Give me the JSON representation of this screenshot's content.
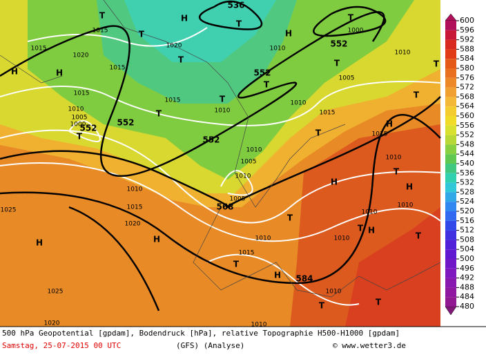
{
  "map_labels": [
    "552",
    "552",
    "552",
    "552",
    "552",
    "536",
    "568",
    "584",
    "1015",
    "1015",
    "1020",
    "1020",
    "1015",
    "1015",
    "1015",
    "1010",
    "1010",
    "1005",
    "1000",
    "1000",
    "1010",
    "1010",
    "1005",
    "1015",
    "1015",
    "1010",
    "1005",
    "1010",
    "1010",
    "1015",
    "1020",
    "1025",
    "1005",
    "1010",
    "1010",
    "1010",
    "1010",
    "1010",
    "1015",
    "1010",
    "1025",
    "1010",
    "1020",
    "1010",
    "H",
    "H",
    "H",
    "H",
    "H",
    "H",
    "H",
    "H",
    "H",
    "H",
    "H",
    "T",
    "T",
    "T",
    "T",
    "T",
    "T",
    "T",
    "T",
    "T",
    "T",
    "T",
    "T",
    "T",
    "T",
    "T",
    "T",
    "T",
    "T",
    "T",
    "T"
  ],
  "colorbar": {
    "ticks": [
      600,
      596,
      592,
      588,
      584,
      580,
      576,
      572,
      568,
      564,
      560,
      556,
      552,
      548,
      544,
      540,
      536,
      532,
      528,
      524,
      520,
      516,
      512,
      508,
      504,
      500,
      496,
      492,
      488,
      484,
      480
    ],
    "colors": [
      "#b0105a",
      "#c81838",
      "#d82a20",
      "#e03c18",
      "#e45a18",
      "#e87020",
      "#ec8828",
      "#f0a030",
      "#f4b838",
      "#f4cc30",
      "#f0dc28",
      "#d8e030",
      "#b8d838",
      "#88d040",
      "#60c850",
      "#40c880",
      "#30d0b0",
      "#30c8d8",
      "#30a8e8",
      "#3088f0",
      "#3068f0",
      "#3048e8",
      "#4030e0",
      "#5020d8",
      "#6018d0",
      "#7018c8",
      "#8018c0",
      "#8818b0",
      "#9018a0",
      "#901890",
      "#801878"
    ]
  },
  "footer": {
    "description": "500 hPa Geopotential [gpdam], Bodendruck [hPa], relative Topographie H500-H1000 [gpdam]",
    "date": "Samstag, 25-07-2015  00 UTC",
    "model": "(GFS)  (Analyse)",
    "credit": "© www.wetter3.de"
  }
}
